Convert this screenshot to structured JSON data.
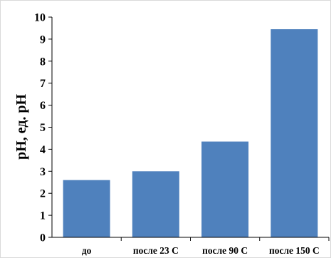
{
  "chart_data": {
    "type": "bar",
    "categories": [
      "до",
      "после 23 С",
      "после 90 С",
      "после 150 С"
    ],
    "values": [
      2.6,
      3.0,
      4.35,
      9.45
    ],
    "title": "",
    "xlabel": "",
    "ylabel": "pH, ед. pH",
    "ylim": [
      0,
      10
    ],
    "yticks": [
      0,
      1,
      2,
      3,
      4,
      5,
      6,
      7,
      8,
      9,
      10
    ],
    "grid": false,
    "legend": "none",
    "bar_color": "#4f81bd",
    "axis_color": "#000000"
  }
}
